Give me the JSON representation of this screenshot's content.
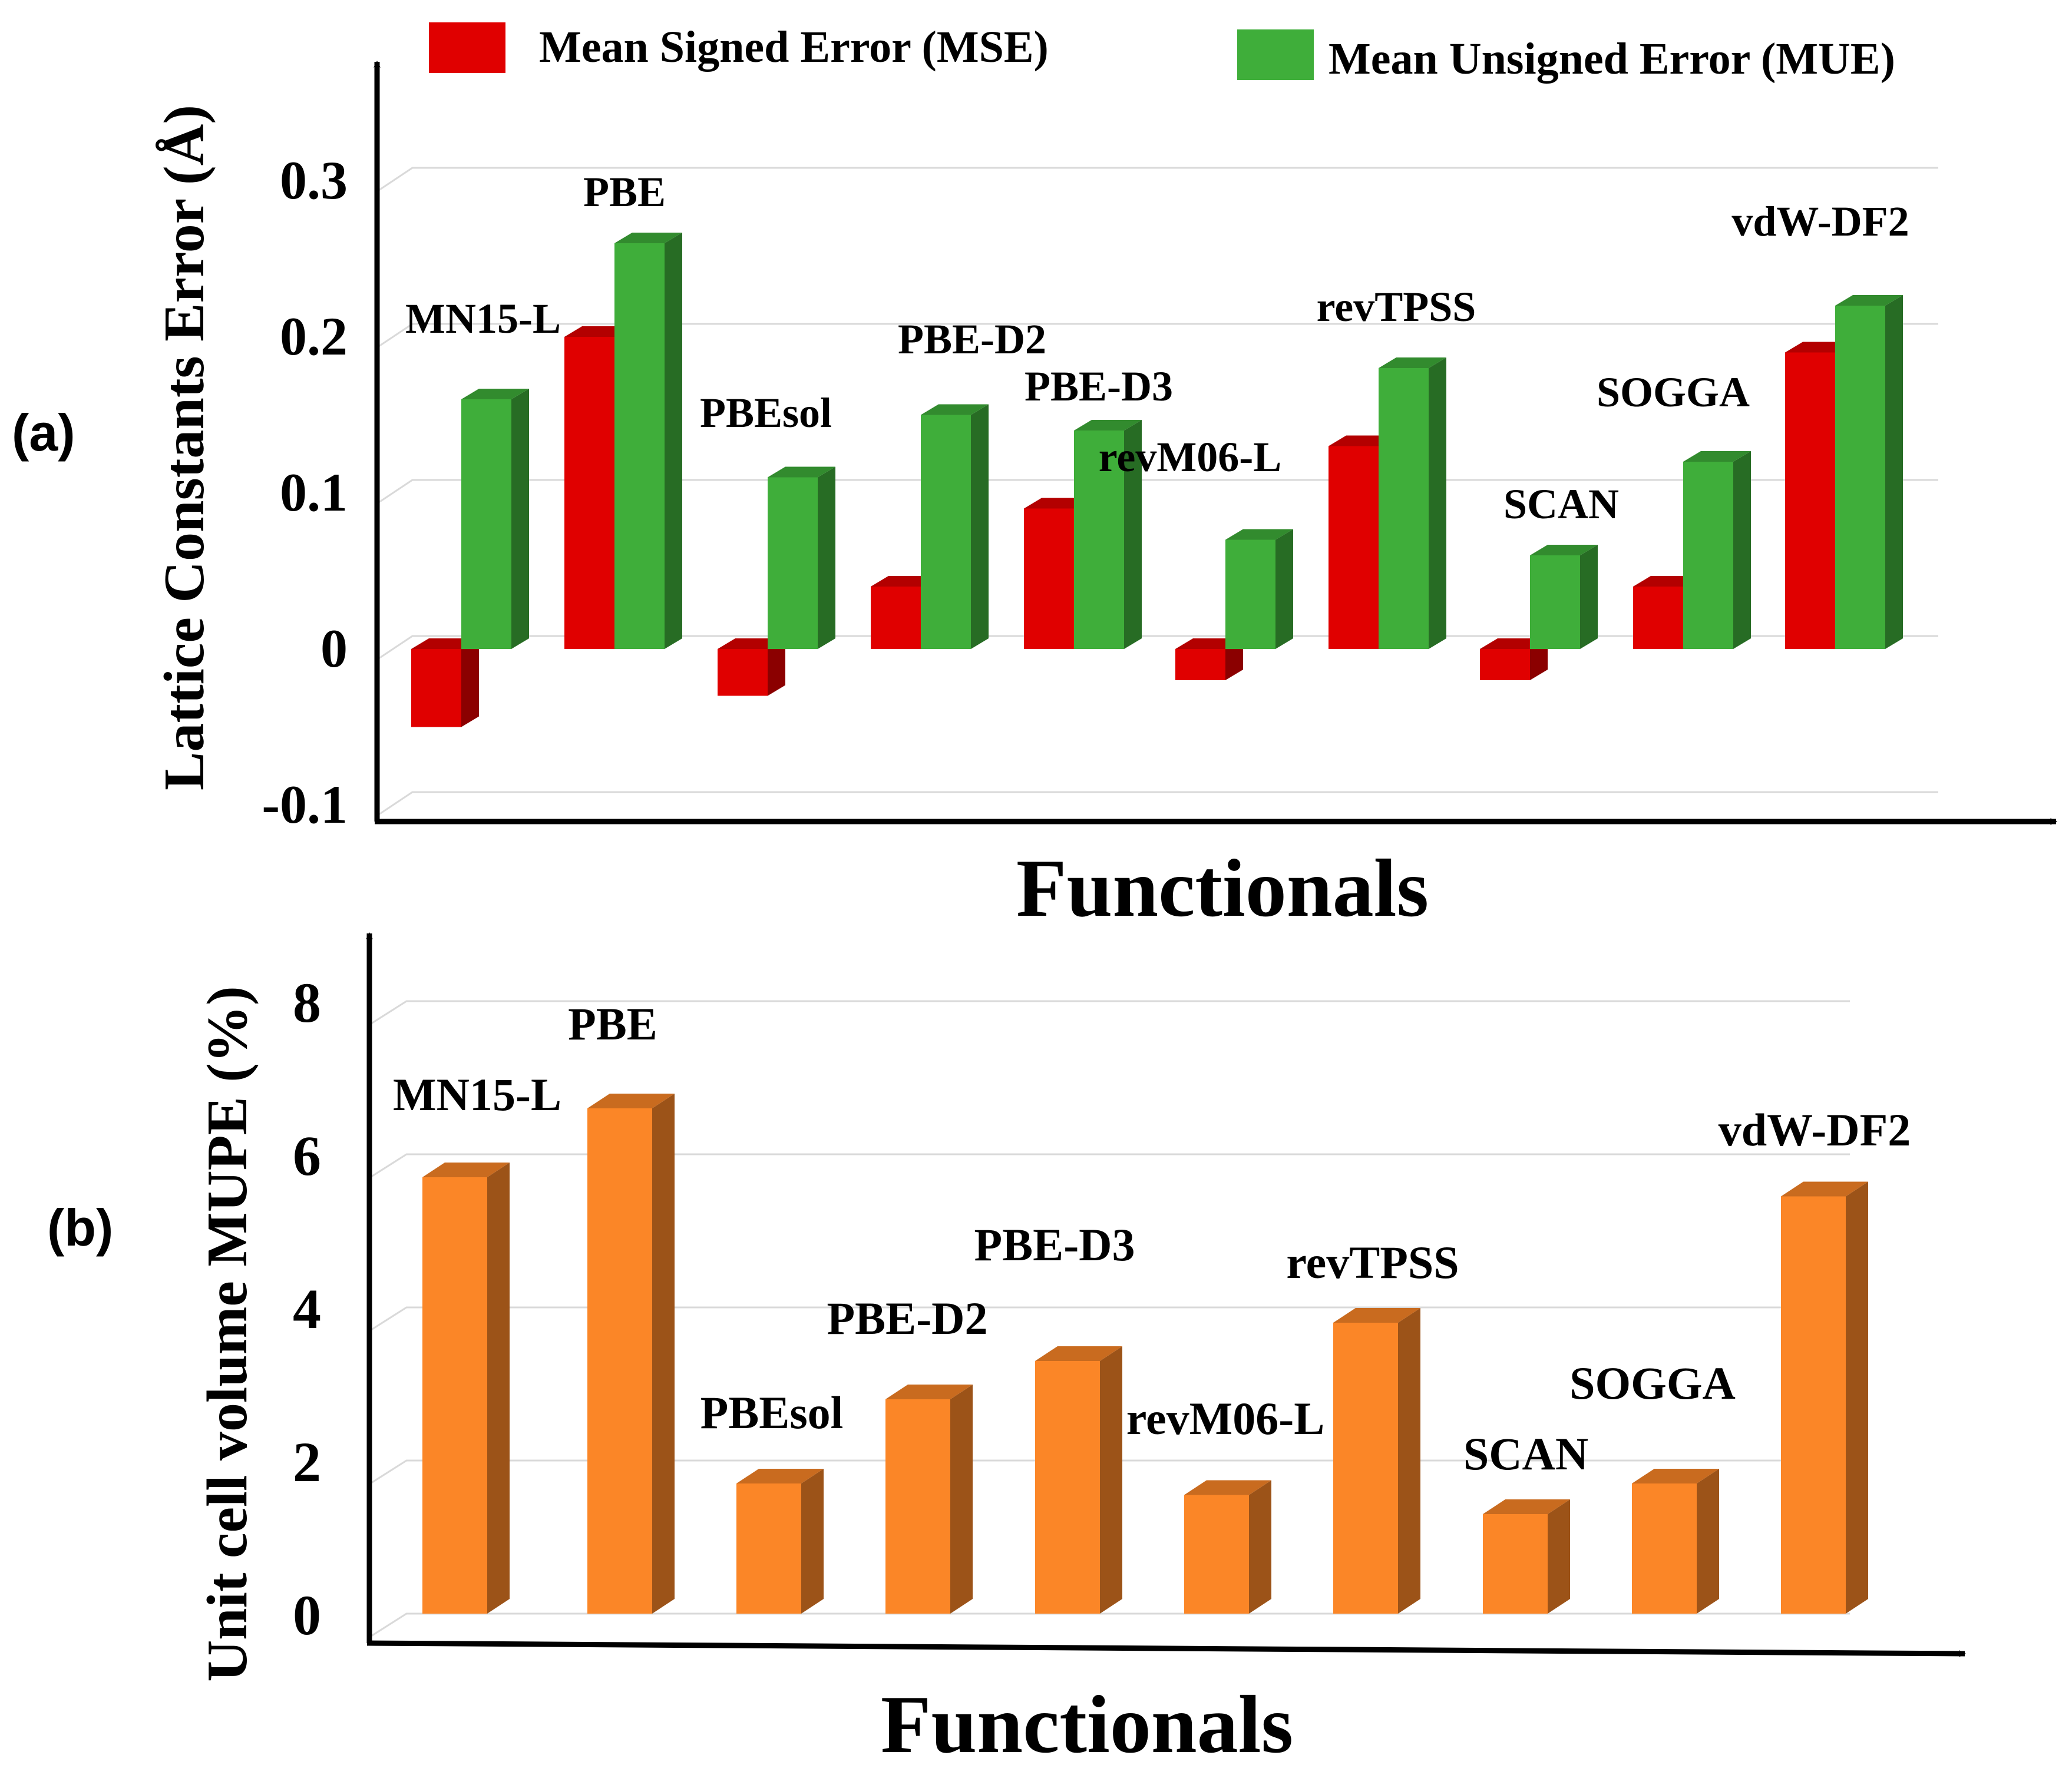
{
  "figure": {
    "panel_a_letter": "(a)",
    "panel_b_letter": "(b)"
  },
  "chart_data": [
    {
      "type": "bar",
      "panel": "(a)",
      "categories": [
        "MN15-L",
        "PBE",
        "PBEsol",
        "PBE-D2",
        "PBE-D3",
        "revM06-L",
        "revTPSS",
        "SCAN",
        "SOGGA",
        "vdW-DF2"
      ],
      "series": [
        {
          "name": "Mean Signed Error (MSE)",
          "color": "#e00000",
          "values": [
            -0.05,
            0.2,
            -0.03,
            0.04,
            0.09,
            -0.02,
            0.13,
            -0.02,
            0.04,
            0.19
          ]
        },
        {
          "name": "Mean Unsigned Error (MUE)",
          "color": "#3fae3a",
          "values": [
            0.16,
            0.26,
            0.11,
            0.15,
            0.14,
            0.07,
            0.18,
            0.06,
            0.12,
            0.22
          ]
        }
      ],
      "xlabel": "Functionals",
      "ylabel": "Lattice Constants Error (Å)",
      "ylim": [
        -0.1,
        0.3
      ],
      "yticks": [
        -0.1,
        0,
        0.1,
        0.2,
        0.3
      ],
      "ytick_labels": [
        "-0.1",
        "0",
        "0.1",
        "0.2",
        "0.3"
      ],
      "grid": true,
      "legend": "top"
    },
    {
      "type": "bar",
      "panel": "(b)",
      "categories": [
        "MN15-L",
        "PBE",
        "PBEsol",
        "PBE-D2",
        "PBE-D3",
        "revM06-L",
        "revTPSS",
        "SCAN",
        "SOGGA",
        "vdW-DF2"
      ],
      "series": [
        {
          "color": "#fb8627",
          "values": [
            5.7,
            6.6,
            1.7,
            2.8,
            3.3,
            1.55,
            3.8,
            1.3,
            1.7,
            5.45
          ]
        }
      ],
      "xlabel": "Functionals",
      "ylabel": "Unit cell volume MUPE (%)",
      "ylim": [
        0,
        8
      ],
      "yticks": [
        0,
        2,
        4,
        6,
        8
      ],
      "ytick_labels": [
        "0",
        "2",
        "4",
        "6",
        "8"
      ],
      "grid": true,
      "legend": "none"
    }
  ]
}
